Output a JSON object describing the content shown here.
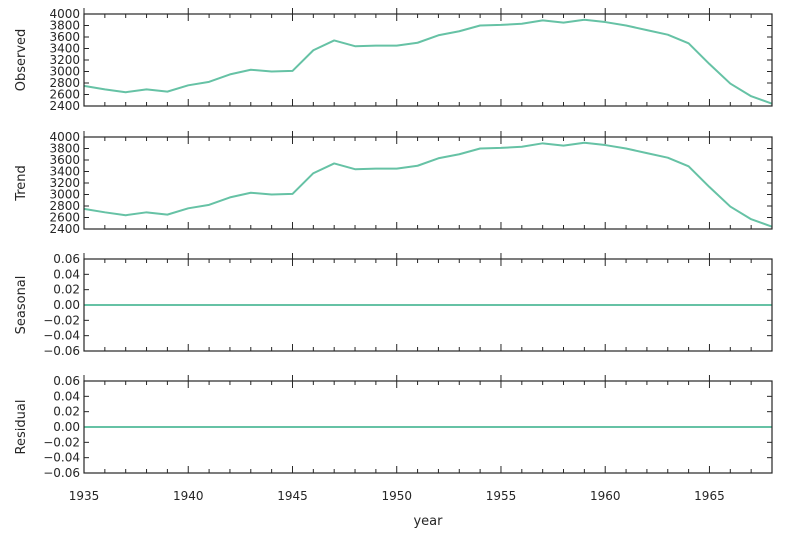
{
  "chart_data": {
    "type": "line",
    "layout": "stacked-subplots-shared-x",
    "line_color": "#66c2a5",
    "x": [
      1935,
      1936,
      1937,
      1938,
      1939,
      1940,
      1941,
      1942,
      1943,
      1944,
      1945,
      1946,
      1947,
      1948,
      1949,
      1950,
      1951,
      1952,
      1953,
      1954,
      1955,
      1956,
      1957,
      1958,
      1959,
      1960,
      1961,
      1962,
      1963,
      1964,
      1965,
      1966,
      1967,
      1968
    ],
    "xlabel": "year",
    "xlim": [
      1935,
      1968
    ],
    "xticks": [
      1935,
      1940,
      1945,
      1950,
      1955,
      1960,
      1965
    ],
    "subplots": [
      {
        "ylabel": "Observed",
        "ylim": [
          2400,
          4000
        ],
        "yticks": [
          2400,
          2600,
          2800,
          3000,
          3200,
          3400,
          3600,
          3800,
          4000
        ],
        "ytick_labels": [
          "2400",
          "2600",
          "2800",
          "3000",
          "3200",
          "3400",
          "3600",
          "3800",
          "4000"
        ],
        "values": [
          2750,
          2690,
          2640,
          2690,
          2650,
          2760,
          2820,
          2950,
          3030,
          3000,
          3010,
          3370,
          3540,
          3440,
          3450,
          3450,
          3500,
          3630,
          3700,
          3800,
          3810,
          3830,
          3890,
          3850,
          3900,
          3860,
          3800,
          3720,
          3640,
          3490,
          3130,
          2790,
          2570,
          2440
        ]
      },
      {
        "ylabel": "Trend",
        "ylim": [
          2400,
          4000
        ],
        "yticks": [
          2400,
          2600,
          2800,
          3000,
          3200,
          3400,
          3600,
          3800,
          4000
        ],
        "ytick_labels": [
          "2400",
          "2600",
          "2800",
          "3000",
          "3200",
          "3400",
          "3600",
          "3800",
          "4000"
        ],
        "values": [
          2750,
          2690,
          2640,
          2690,
          2650,
          2760,
          2820,
          2950,
          3030,
          3000,
          3010,
          3370,
          3540,
          3440,
          3450,
          3450,
          3500,
          3630,
          3700,
          3800,
          3810,
          3830,
          3890,
          3850,
          3900,
          3860,
          3800,
          3720,
          3640,
          3490,
          3130,
          2790,
          2570,
          2440
        ]
      },
      {
        "ylabel": "Seasonal",
        "ylim": [
          -0.06,
          0.06
        ],
        "yticks": [
          -0.06,
          -0.04,
          -0.02,
          0.0,
          0.02,
          0.04,
          0.06
        ],
        "ytick_labels": [
          "−0.06",
          "−0.04",
          "−0.02",
          "0.00",
          "0.02",
          "0.04",
          "0.06"
        ],
        "values": [
          0,
          0,
          0,
          0,
          0,
          0,
          0,
          0,
          0,
          0,
          0,
          0,
          0,
          0,
          0,
          0,
          0,
          0,
          0,
          0,
          0,
          0,
          0,
          0,
          0,
          0,
          0,
          0,
          0,
          0,
          0,
          0,
          0,
          0
        ]
      },
      {
        "ylabel": "Residual",
        "ylim": [
          -0.06,
          0.06
        ],
        "yticks": [
          -0.06,
          -0.04,
          -0.02,
          0.0,
          0.02,
          0.04,
          0.06
        ],
        "ytick_labels": [
          "−0.06",
          "−0.04",
          "−0.02",
          "0.00",
          "0.02",
          "0.04",
          "0.06"
        ],
        "values": [
          0,
          0,
          0,
          0,
          0,
          0,
          0,
          0,
          0,
          0,
          0,
          0,
          0,
          0,
          0,
          0,
          0,
          0,
          0,
          0,
          0,
          0,
          0,
          0,
          0,
          0,
          0,
          0,
          0,
          0,
          0,
          0,
          0,
          0
        ]
      }
    ]
  }
}
